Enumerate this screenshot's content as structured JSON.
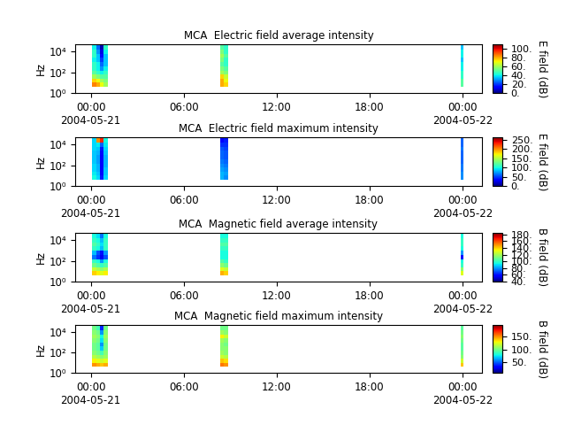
{
  "chart_data": [
    {
      "type": "heatmap",
      "title": "MCA  Electric field average intensity",
      "ylabel": "Hz",
      "colorbar_label": "E field (dB)",
      "color": "jet",
      "log": "y",
      "xlim": [
        -1,
        25.25
      ],
      "xticks": [
        {
          "value": 0,
          "label": "00:00\n2004-05-21"
        },
        {
          "value": 6,
          "label": "06:00"
        },
        {
          "value": 12,
          "label": "12:00"
        },
        {
          "value": 18,
          "label": "18:00"
        },
        {
          "value": 24,
          "label": "00:00\n2004-05-22"
        }
      ],
      "ylim": [
        1,
        50000
      ],
      "yticks": [
        {
          "value": 1,
          "label": "10⁰"
        },
        {
          "value": 100,
          "label": "10²"
        },
        {
          "value": 10000,
          "label": "10⁴"
        }
      ],
      "x_edges": [
        0.1,
        0.35,
        0.6,
        0.85,
        1.1,
        8.35,
        8.6,
        8.85,
        23.9,
        24.05
      ],
      "y_edges": [
        4,
        10,
        25,
        60,
        150,
        400,
        1000,
        2500,
        6000,
        15000,
        40000
      ],
      "cells": [
        [
          85,
          80,
          70,
          60,
          null,
          80,
          75,
          null,
          50
        ],
        [
          75,
          70,
          60,
          55,
          null,
          80,
          70,
          null,
          50
        ],
        [
          60,
          55,
          50,
          50,
          null,
          75,
          65,
          null,
          45
        ],
        [
          50,
          45,
          40,
          45,
          null,
          60,
          55,
          null,
          45
        ],
        [
          45,
          40,
          30,
          40,
          null,
          55,
          50,
          null,
          40
        ],
        [
          45,
          40,
          25,
          35,
          null,
          50,
          45,
          null,
          40
        ],
        [
          40,
          35,
          20,
          35,
          null,
          55,
          45,
          null,
          35
        ],
        [
          45,
          35,
          15,
          35,
          null,
          60,
          50,
          null,
          40
        ],
        [
          45,
          30,
          10,
          40,
          null,
          55,
          45,
          null,
          40
        ],
        [
          40,
          25,
          5,
          45,
          null,
          50,
          45,
          null,
          35
        ]
      ],
      "color_range": [
        0,
        110
      ],
      "color_ticks": [
        {
          "value": 0,
          "label": "0."
        },
        {
          "value": 20,
          "label": "20."
        },
        {
          "value": 40,
          "label": "40."
        },
        {
          "value": 60,
          "label": "60."
        },
        {
          "value": 80,
          "label": "80."
        },
        {
          "value": 100,
          "label": "100."
        }
      ]
    },
    {
      "type": "heatmap",
      "title": "MCA  Electric field maximum intensity",
      "ylabel": "Hz",
      "colorbar_label": "E field (dB)",
      "color": "jet",
      "log": "y",
      "xlim": [
        -1,
        25.25
      ],
      "xticks": [
        {
          "value": 0,
          "label": "00:00\n2004-05-21"
        },
        {
          "value": 6,
          "label": "06:00"
        },
        {
          "value": 12,
          "label": "12:00"
        },
        {
          "value": 18,
          "label": "18:00"
        },
        {
          "value": 24,
          "label": "00:00\n2004-05-22"
        }
      ],
      "ylim": [
        1,
        50000
      ],
      "yticks": [
        {
          "value": 1,
          "label": "10⁰"
        },
        {
          "value": 100,
          "label": "10²"
        },
        {
          "value": 10000,
          "label": "10⁴"
        }
      ],
      "x_edges": [
        0.1,
        0.35,
        0.6,
        0.85,
        1.1,
        8.35,
        8.6,
        8.85,
        23.9,
        24.05
      ],
      "y_edges": [
        4,
        10,
        25,
        60,
        150,
        400,
        1000,
        2500,
        6000,
        15000,
        40000
      ],
      "cells": [
        [
          100,
          90,
          40,
          90,
          null,
          80,
          70,
          null,
          70
        ],
        [
          95,
          85,
          35,
          85,
          null,
          80,
          75,
          null,
          70
        ],
        [
          90,
          80,
          30,
          85,
          null,
          75,
          70,
          null,
          65
        ],
        [
          90,
          80,
          30,
          80,
          null,
          70,
          65,
          null,
          65
        ],
        [
          85,
          75,
          30,
          80,
          null,
          65,
          60,
          null,
          60
        ],
        [
          85,
          75,
          30,
          80,
          null,
          60,
          55,
          null,
          60
        ],
        [
          85,
          80,
          35,
          85,
          null,
          60,
          55,
          null,
          60
        ],
        [
          90,
          85,
          40,
          90,
          null,
          55,
          50,
          null,
          65
        ],
        [
          90,
          95,
          60,
          95,
          null,
          45,
          45,
          null,
          60
        ],
        [
          90,
          200,
          230,
          100,
          null,
          30,
          40,
          null,
          60
        ]
      ],
      "color_range": [
        0,
        265
      ],
      "color_ticks": [
        {
          "value": 0,
          "label": "0."
        },
        {
          "value": 50,
          "label": "50."
        },
        {
          "value": 100,
          "label": "100."
        },
        {
          "value": 150,
          "label": "150."
        },
        {
          "value": 200,
          "label": "200."
        },
        {
          "value": 250,
          "label": "250."
        }
      ]
    },
    {
      "type": "heatmap",
      "title": "MCA  Magnetic field average intensity",
      "ylabel": "Hz",
      "colorbar_label": "B field (dB)",
      "color": "jet",
      "log": "y",
      "xlim": [
        -1,
        25.25
      ],
      "xticks": [
        {
          "value": 0,
          "label": "00:00\n2004-05-21"
        },
        {
          "value": 6,
          "label": "06:00"
        },
        {
          "value": 12,
          "label": "12:00"
        },
        {
          "value": 18,
          "label": "18:00"
        },
        {
          "value": 24,
          "label": "00:00\n2004-05-22"
        }
      ],
      "ylim": [
        1,
        50000
      ],
      "yticks": [
        {
          "value": 1,
          "label": "10⁰"
        },
        {
          "value": 100,
          "label": "10²"
        },
        {
          "value": 10000,
          "label": "10⁴"
        }
      ],
      "x_edges": [
        0.1,
        0.35,
        0.6,
        0.85,
        1.1,
        8.35,
        8.6,
        8.85,
        23.9,
        24.05
      ],
      "y_edges": [
        4,
        10,
        25,
        60,
        150,
        400,
        1000,
        2500,
        6000,
        15000,
        40000
      ],
      "cells": [
        [
          140,
          135,
          130,
          135,
          null,
          145,
          140,
          null,
          130
        ],
        [
          125,
          120,
          115,
          120,
          null,
          130,
          125,
          null,
          115
        ],
        [
          110,
          105,
          100,
          105,
          null,
          115,
          110,
          null,
          100
        ],
        [
          100,
          95,
          80,
          95,
          null,
          105,
          100,
          null,
          95
        ],
        [
          75,
          65,
          55,
          70,
          null,
          95,
          95,
          null,
          60
        ],
        [
          85,
          70,
          60,
          80,
          null,
          95,
          95,
          null,
          80
        ],
        [
          100,
          95,
          85,
          100,
          null,
          100,
          100,
          null,
          95
        ],
        [
          105,
          100,
          90,
          100,
          null,
          105,
          105,
          null,
          100
        ],
        [
          100,
          95,
          85,
          100,
          null,
          100,
          100,
          null,
          100
        ],
        [
          95,
          90,
          75,
          95,
          null,
          95,
          95,
          null,
          95
        ]
      ],
      "color_range": [
        40,
        185
      ],
      "color_ticks": [
        {
          "value": 40,
          "label": "40."
        },
        {
          "value": 60,
          "label": "60."
        },
        {
          "value": 80,
          "label": "80."
        },
        {
          "value": 100,
          "label": "100."
        },
        {
          "value": 120,
          "label": "120."
        },
        {
          "value": 140,
          "label": "140."
        },
        {
          "value": 160,
          "label": "160."
        },
        {
          "value": 180,
          "label": "180."
        }
      ]
    },
    {
      "type": "heatmap",
      "title": "MCA  Magnetic field maximum intensity",
      "ylabel": "Hz",
      "colorbar_label": "B field (dB)",
      "color": "jet",
      "log": "y",
      "xlim": [
        -1,
        25.25
      ],
      "xticks": [
        {
          "value": 0,
          "label": "00:00\n2004-05-21"
        },
        {
          "value": 6,
          "label": "06:00"
        },
        {
          "value": 12,
          "label": "12:00"
        },
        {
          "value": 18,
          "label": "18:00"
        },
        {
          "value": 24,
          "label": "00:00\n2004-05-22"
        }
      ],
      "ylim": [
        1,
        50000
      ],
      "yticks": [
        {
          "value": 1,
          "label": "10⁰"
        },
        {
          "value": 100,
          "label": "10²"
        },
        {
          "value": 10000,
          "label": "10⁴"
        }
      ],
      "x_edges": [
        0.1,
        0.35,
        0.6,
        0.85,
        1.1,
        8.35,
        8.6,
        8.85,
        23.9,
        24.05
      ],
      "y_edges": [
        4,
        10,
        25,
        60,
        150,
        400,
        1000,
        2500,
        6000,
        15000,
        40000
      ],
      "cells": [
        [
          150,
          145,
          140,
          145,
          null,
          155,
          150,
          null,
          140
        ],
        [
          130,
          125,
          120,
          125,
          null,
          140,
          135,
          null,
          120
        ],
        [
          115,
          110,
          105,
          110,
          null,
          120,
          115,
          null,
          105
        ],
        [
          105,
          100,
          90,
          105,
          null,
          110,
          105,
          null,
          100
        ],
        [
          100,
          95,
          70,
          100,
          null,
          105,
          105,
          null,
          95
        ],
        [
          100,
          95,
          60,
          100,
          null,
          105,
          100,
          null,
          95
        ],
        [
          105,
          100,
          75,
          105,
          null,
          110,
          105,
          null,
          100
        ],
        [
          110,
          105,
          80,
          110,
          null,
          130,
          120,
          null,
          105
        ],
        [
          105,
          100,
          60,
          105,
          null,
          110,
          105,
          null,
          100
        ],
        [
          100,
          90,
          40,
          100,
          null,
          100,
          100,
          null,
          95
        ]
      ],
      "color_range": [
        10,
        195
      ],
      "color_ticks": [
        {
          "value": 50,
          "label": "50."
        },
        {
          "value": 100,
          "label": "100."
        },
        {
          "value": 150,
          "label": "150."
        }
      ]
    }
  ]
}
